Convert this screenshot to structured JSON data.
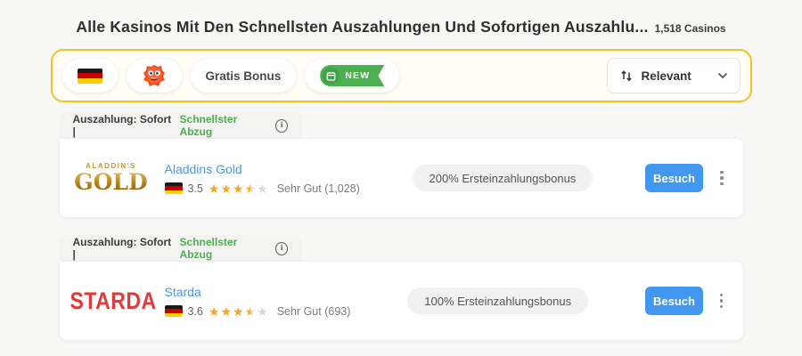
{
  "header": {
    "title": "Alle Kasinos Mit Den Schnellsten Auszahlungen Und Sofortigen Auszahlu...",
    "count": "1,518 Casinos"
  },
  "filter_bar": {
    "flag_icon": "germany-flag",
    "mascot_icon": "casino-mascot",
    "gratis_bonus_label": "Gratis Bonus",
    "new_badge_label": "NEW",
    "sort_label": "Relevant",
    "sort_icon": "sort-arrows",
    "chevron_icon": "chevron-down"
  },
  "colors": {
    "accent_gold": "#f0c320",
    "green": "#4caf50",
    "link_blue": "#4a97ed",
    "button_blue": "#4297f0",
    "star_orange": "#f5a623",
    "star_gray": "#d8d8d8"
  },
  "cards": [
    {
      "tab": {
        "prefix": "Auszahlung: Sofort |",
        "highlight": "Schnellster Abzug",
        "info_icon": "info-icon"
      },
      "logo": {
        "line1": "ALADDIN'S",
        "line2": "GOLD"
      },
      "name": "Aladdins Gold",
      "rating": "3.5",
      "stars_display": 3.5,
      "review": "Sehr Gut (1,028)",
      "bonus": "200% Ersteinzahlungsbonus",
      "visit_label": "Besuch"
    },
    {
      "tab": {
        "prefix": "Auszahlung: Sofort |",
        "highlight": "Schnellster Abzug",
        "info_icon": "info-icon"
      },
      "logo": {
        "line1": "",
        "line2": "STARDA"
      },
      "name": "Starda",
      "rating": "3.6",
      "stars_display": 3.5,
      "review": "Sehr Gut (693)",
      "bonus": "100% Ersteinzahlungsbonus",
      "visit_label": "Besuch"
    }
  ]
}
